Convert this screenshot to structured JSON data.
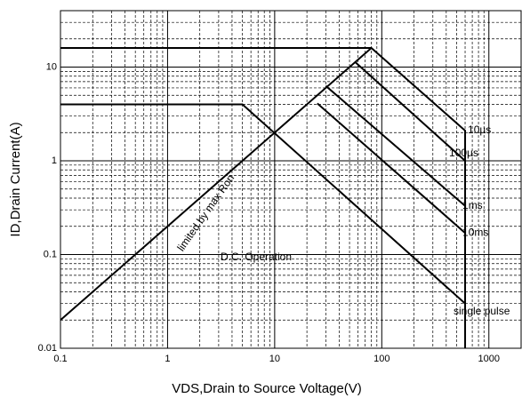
{
  "chart_data": {
    "type": "line",
    "x_label": "VDS,Drain to Source Voltage(V)",
    "y_label": "ID,Drain Current(A)",
    "log_x": true,
    "log_y": true,
    "grid": true,
    "minor_grid": true,
    "xlim": [
      0.1,
      2000
    ],
    "xticks": [
      0.1,
      1,
      10,
      100,
      1000
    ],
    "ylim": [
      0.01,
      40
    ],
    "yticks": [
      0.01,
      0.1,
      1,
      10
    ],
    "color": "#000000",
    "series": [
      {
        "name": "limited by max Ron",
        "x": [
          0.1,
          80
        ],
        "values": [
          0.02,
          16
        ]
      },
      {
        "name": "10µs",
        "x": [
          0.1,
          80,
          600,
          600
        ],
        "values": [
          16,
          16,
          2.1,
          0.01
        ]
      },
      {
        "name": "100µs",
        "x": [
          56,
          600
        ],
        "values": [
          11.4,
          1.0
        ]
      },
      {
        "name": "1ms",
        "x": [
          30,
          600
        ],
        "values": [
          6.3,
          0.33
        ]
      },
      {
        "name": "10ms",
        "x": [
          25,
          600
        ],
        "values": [
          4.1,
          0.17
        ]
      },
      {
        "name": "D.C. Operation",
        "x": [
          0.1,
          5,
          600
        ],
        "values": [
          4,
          4,
          0.03
        ]
      }
    ],
    "annotations": [
      "single pulse"
    ]
  }
}
